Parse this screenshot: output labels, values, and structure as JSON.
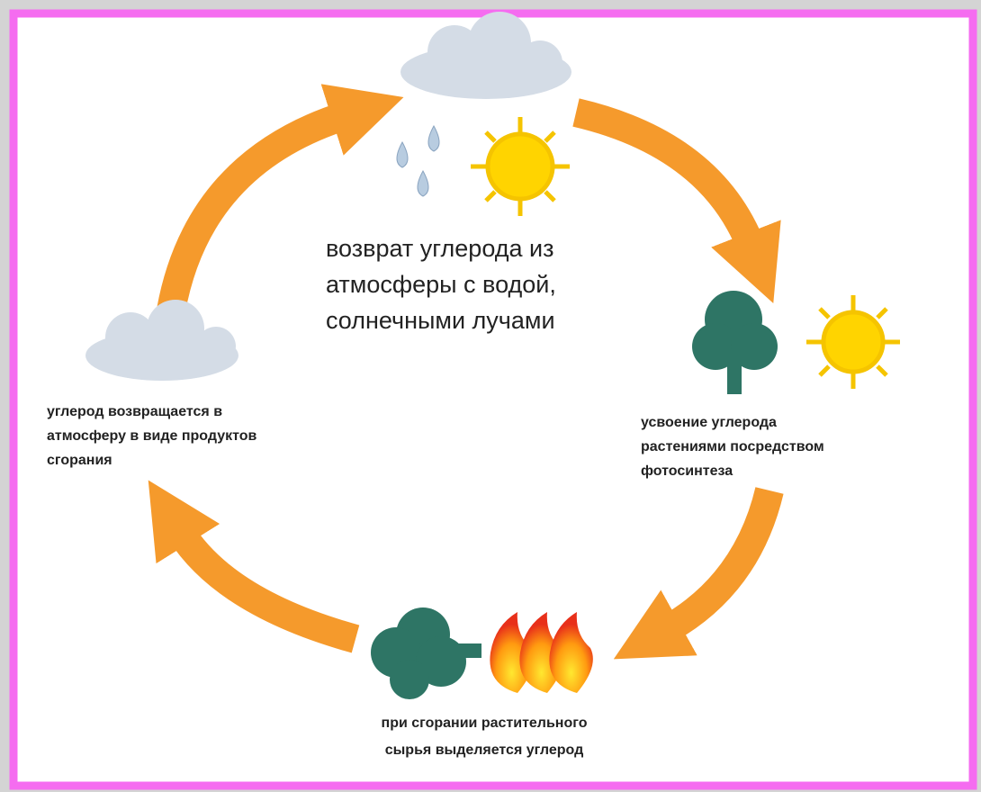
{
  "nodes": [
    {
      "lines": [
        "возврат углерода из",
        "атмосферы с водой,",
        "солнечными лучами"
      ]
    },
    {
      "lines": [
        "усвоение углерода",
        "растениями посредством",
        "фотосинтеза"
      ]
    },
    {
      "lines": [
        "при сгорании растительного",
        "сырья выделяется углерод"
      ]
    },
    {
      "lines": [
        "углерод возвращается в",
        "атмосферу в виде продуктов",
        "сгорания"
      ]
    }
  ]
}
